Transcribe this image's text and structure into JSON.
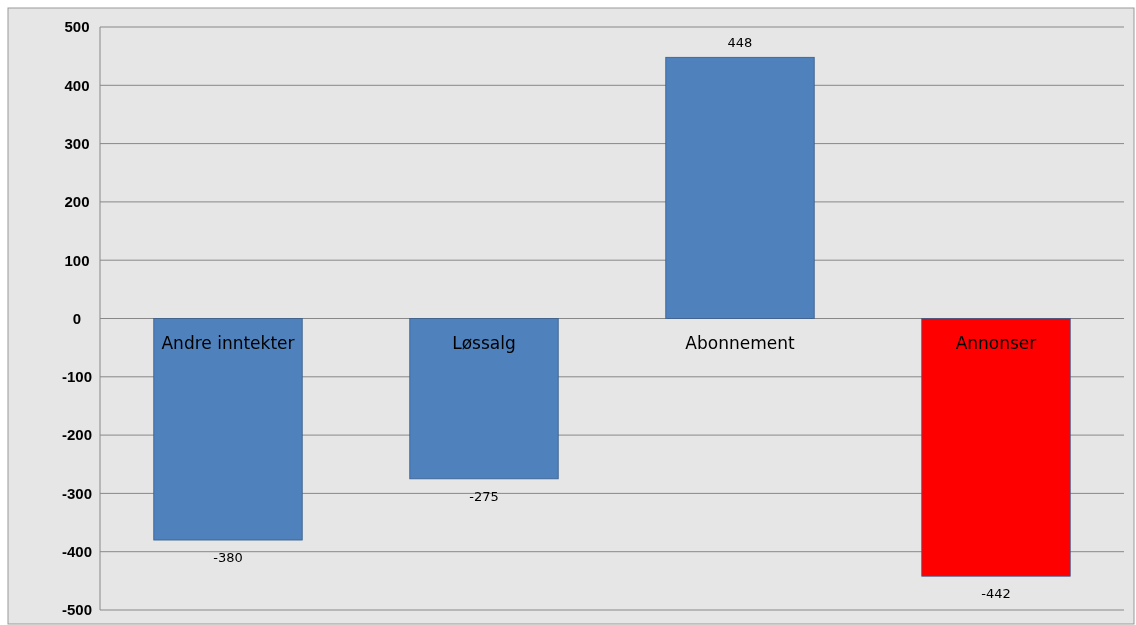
{
  "chart_data": {
    "type": "bar",
    "categories": [
      "Andre inntekter",
      "Løssalg",
      "Abonnement",
      "Annonser"
    ],
    "values": [
      -380,
      -275,
      448,
      -442
    ],
    "colors": [
      "#4f81bd",
      "#4f81bd",
      "#4f81bd",
      "#ff0000"
    ],
    "ylim": [
      -500,
      500
    ],
    "yticks": [
      -500,
      -400,
      -300,
      -200,
      -100,
      0,
      100,
      200,
      300,
      400,
      500
    ],
    "grid": "y",
    "data_labels": true
  }
}
